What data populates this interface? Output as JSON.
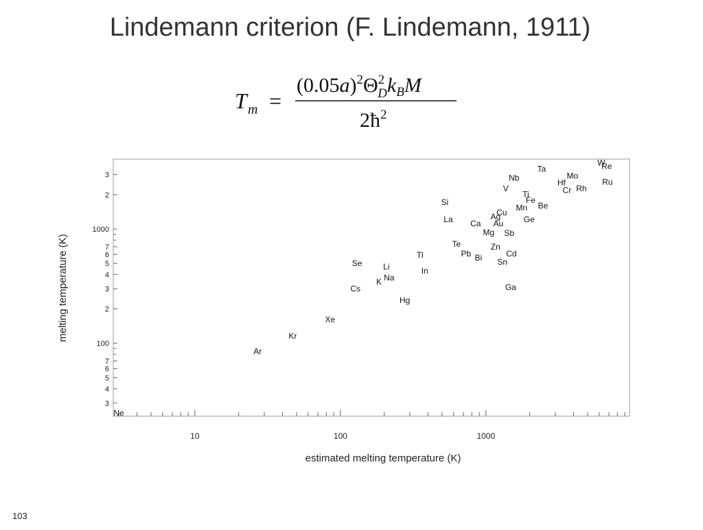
{
  "title": "Lindemann criterion (F. Lindemann, 1911)",
  "page_number": "103",
  "formula": {
    "lhs": "T",
    "lhs_sub": "m",
    "eq": "=",
    "num_open": "(0.05",
    "num_a": "a",
    "num_close": ")",
    "num_exp": "2",
    "theta": "Θ",
    "theta_sup": "2",
    "theta_sub": "D",
    "k": "k",
    "k_sub": "B",
    "M": "M",
    "den": "2ħ",
    "den_exp": "2"
  },
  "chart_data": {
    "type": "scatter",
    "xlabel": "estimated melting temperature (K)",
    "ylabel": "melting temperature (K)",
    "xscale": "log",
    "yscale": "log",
    "xlim": [
      2.75,
      9700
    ],
    "ylim": [
      23,
      4100
    ],
    "xticks": [
      10,
      100,
      1000
    ],
    "xminorticks": [
      3,
      4,
      5,
      6,
      7,
      8,
      9,
      20,
      30,
      40,
      50,
      60,
      70,
      80,
      90,
      200,
      300,
      400,
      500,
      600,
      700,
      800,
      900,
      2000,
      3000,
      4000,
      5000,
      6000,
      7000,
      8000,
      9000
    ],
    "yticks": [
      {
        "value": 30,
        "label": "3"
      },
      {
        "value": 40,
        "label": "4"
      },
      {
        "value": 50,
        "label": "5"
      },
      {
        "value": 60,
        "label": "6"
      },
      {
        "value": 70,
        "label": "7"
      },
      100,
      {
        "value": 200,
        "label": "2"
      },
      {
        "value": 300,
        "label": "3"
      },
      {
        "value": 400,
        "label": "4"
      },
      {
        "value": 500,
        "label": "5"
      },
      {
        "value": 600,
        "label": "6"
      },
      {
        "value": 700,
        "label": "7"
      },
      1000,
      {
        "value": 2000,
        "label": "2"
      },
      {
        "value": 3000,
        "label": "3"
      }
    ],
    "yminorticks": [
      80,
      90,
      800,
      900
    ],
    "color": "#111111",
    "labels": [
      "Ne",
      "Ar",
      "Kr",
      "Xe",
      "Cs",
      "Se",
      "Hg",
      "K",
      "Na",
      "Li",
      "Tl",
      "In",
      "Si",
      "La",
      "Te",
      "Pb",
      "Bi",
      "Ca",
      "Ag",
      "Cu",
      "Au",
      "Mg",
      "Sb",
      "Zn",
      "Cd",
      "Sn",
      "Ga",
      "Nb",
      "V",
      "Ta",
      "Ti",
      "Fe",
      "Mn",
      "Be",
      "Ge",
      "Hf",
      "Mo",
      "Cr",
      "Rh",
      "W",
      "Re",
      "Ru"
    ],
    "x": [
      3.0,
      27,
      47,
      85,
      127,
      130,
      277,
      184,
      216,
      207,
      352,
      380,
      521,
      551,
      627,
      730,
      887,
      849,
      1164,
      1283,
      1216,
      1045,
      1446,
      1164,
      1496,
      1297,
      1479,
      1560,
      1370,
      2410,
      1879,
      2027,
      1759,
      2466,
      1981,
      3304,
      3929,
      3605,
      4528,
      6198,
      6761,
      6834
    ],
    "y": [
      24.5,
      85,
      116,
      162,
      301,
      502,
      238,
      346,
      376,
      469,
      592,
      431,
      1713,
      1213,
      738,
      608,
      561,
      1117,
      1282,
      1393,
      1117,
      933,
      920,
      698,
      608,
      516,
      310,
      2811,
      2256,
      3365,
      2018,
      1783,
      1534,
      1600,
      1213,
      2553,
      2931,
      2193,
      2256,
      3810,
      3556,
      2589
    ]
  }
}
